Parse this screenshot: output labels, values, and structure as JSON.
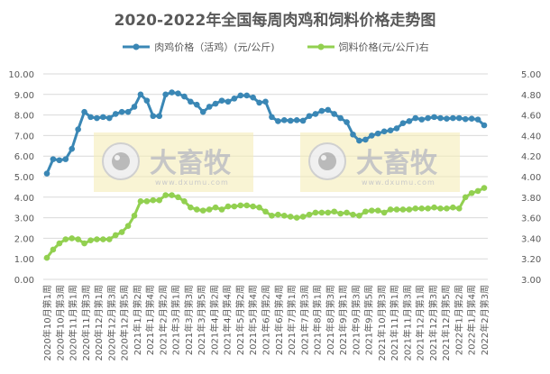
{
  "chart_data": {
    "type": "line",
    "title": "2020-2022年全国每周肉鸡和饲料价格走势图",
    "y_left": {
      "min": 0,
      "max": 10,
      "step": 1,
      "ticks": [
        "0.00",
        "1.00",
        "2.00",
        "3.00",
        "4.00",
        "5.00",
        "6.00",
        "7.00",
        "8.00",
        "9.00",
        "10.00"
      ]
    },
    "y_right": {
      "min": 3.0,
      "max": 5.0,
      "step": 0.2,
      "ticks": [
        "3.00",
        "3.20",
        "3.40",
        "3.60",
        "3.80",
        "4.00",
        "4.20",
        "4.40",
        "4.60",
        "4.80",
        "5.00"
      ]
    },
    "x_tick_labels": [
      "2020年10月第1周",
      "2020年10月第3周",
      "2020年11月第1周",
      "2020年11月第3周",
      "2020年12月第1周",
      "2020年12月第3周",
      "2020年12月第5周",
      "2021年1月第2周",
      "2021年1月第4周",
      "2021年2月第2周",
      "2021年3月第1周",
      "2021年3月第3周",
      "2021年3月第5周",
      "2021年4月第2周",
      "2021年4月第4周",
      "2021年5月第2周",
      "2021年5月第4周",
      "2021年6月第2周",
      "2021年6月第4周",
      "2021年7月第1周",
      "2021年7月第3周",
      "2021年8月第1周",
      "2021年8月第3周",
      "2021年9月第1周",
      "2021年9月第3周",
      "2021年9月第5周",
      "2021年10月第3周",
      "2021年11月第1周",
      "2021年11月第3周",
      "2021年12月第1周",
      "2021年12月第3周",
      "2021年12月第5周",
      "2022年1月第2周",
      "2022年1月第4周",
      "2022年2月第3周"
    ],
    "series": [
      {
        "name": "肉鸡价格（活鸡）(元/公斤)",
        "axis": "left",
        "color": "#3A87B5",
        "values": [
          5.15,
          5.85,
          5.8,
          5.85,
          6.35,
          7.3,
          8.15,
          7.9,
          7.85,
          7.9,
          7.85,
          8.05,
          8.15,
          8.15,
          8.4,
          9.0,
          8.7,
          7.95,
          7.95,
          9.0,
          9.1,
          9.05,
          8.9,
          8.65,
          8.5,
          8.15,
          8.4,
          8.55,
          8.7,
          8.65,
          8.8,
          8.95,
          8.95,
          8.85,
          8.6,
          8.65,
          7.9,
          7.7,
          7.75,
          7.72,
          7.75,
          7.72,
          7.95,
          8.05,
          8.2,
          8.25,
          8.05,
          7.85,
          7.65,
          7.05,
          6.75,
          6.8,
          7.0,
          7.1,
          7.2,
          7.25,
          7.35,
          7.6,
          7.7,
          7.85,
          7.78,
          7.85,
          7.9,
          7.85,
          7.82,
          7.85,
          7.85,
          7.8,
          7.82,
          7.78,
          7.5
        ]
      },
      {
        "name": "饲料价格(元/公斤)右",
        "axis": "right",
        "color": "#92D050",
        "values": [
          3.21,
          3.29,
          3.35,
          3.39,
          3.4,
          3.39,
          3.35,
          3.38,
          3.39,
          3.39,
          3.39,
          3.43,
          3.46,
          3.52,
          3.62,
          3.76,
          3.76,
          3.77,
          3.77,
          3.82,
          3.82,
          3.8,
          3.76,
          3.7,
          3.68,
          3.67,
          3.68,
          3.7,
          3.68,
          3.71,
          3.71,
          3.72,
          3.72,
          3.71,
          3.7,
          3.66,
          3.62,
          3.63,
          3.62,
          3.61,
          3.6,
          3.61,
          3.63,
          3.65,
          3.65,
          3.65,
          3.66,
          3.64,
          3.65,
          3.63,
          3.62,
          3.66,
          3.67,
          3.67,
          3.65,
          3.68,
          3.68,
          3.68,
          3.68,
          3.69,
          3.69,
          3.69,
          3.7,
          3.69,
          3.69,
          3.7,
          3.69,
          3.8,
          3.84,
          3.86,
          3.89
        ]
      }
    ],
    "legend_position": "top",
    "grid": true,
    "watermark": {
      "brand": "大畜牧",
      "url": "www.dxumu.com"
    }
  },
  "legend": {
    "series1": "肉鸡价格（活鸡）(元/公斤)",
    "series2": "饲料价格(元/公斤)右"
  }
}
